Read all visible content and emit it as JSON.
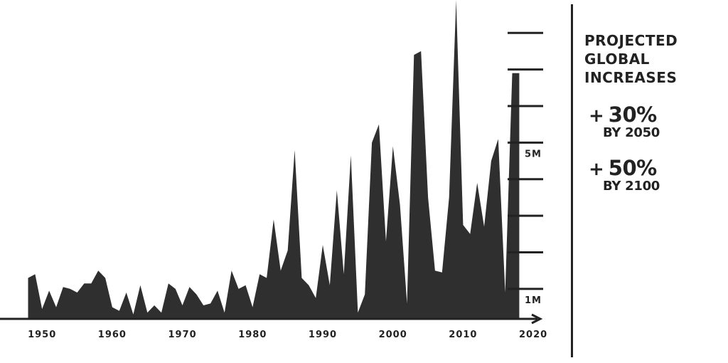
{
  "chart_data": {
    "type": "area",
    "x": [
      1948,
      1949,
      1950,
      1951,
      1952,
      1953,
      1954,
      1955,
      1956,
      1957,
      1958,
      1959,
      1960,
      1961,
      1962,
      1963,
      1964,
      1965,
      1966,
      1967,
      1968,
      1969,
      1970,
      1971,
      1972,
      1973,
      1974,
      1975,
      1976,
      1977,
      1978,
      1979,
      1980,
      1981,
      1982,
      1983,
      1984,
      1985,
      1986,
      1987,
      1988,
      1989,
      1990,
      1991,
      1992,
      1993,
      1994,
      1995,
      1996,
      1997,
      1998,
      1999,
      2000,
      2001,
      2002,
      2003,
      2004,
      2005,
      2006,
      2007,
      2008,
      2009,
      2010,
      2011,
      2012,
      2013,
      2014,
      2015,
      2016,
      2017,
      2018
    ],
    "values": [
      1.3,
      1.4,
      0.45,
      0.95,
      0.5,
      1.05,
      1.0,
      0.9,
      1.15,
      1.15,
      1.5,
      1.3,
      0.5,
      0.4,
      0.9,
      0.3,
      1.1,
      0.35,
      0.55,
      0.35,
      1.15,
      1.0,
      0.55,
      1.05,
      0.85,
      0.55,
      0.6,
      0.95,
      0.35,
      1.5,
      1.0,
      1.1,
      0.5,
      1.4,
      1.3,
      2.9,
      1.5,
      2.05,
      4.8,
      1.3,
      1.1,
      0.75,
      2.2,
      1.1,
      3.7,
      1.4,
      4.65,
      0.35,
      0.85,
      5.0,
      5.5,
      2.3,
      4.9,
      3.3,
      0.6,
      7.4,
      7.5,
      3.5,
      1.5,
      1.45,
      3.5,
      8.9,
      2.75,
      2.5,
      3.9,
      2.7,
      4.5,
      5.1,
      0.9,
      6.9,
      6.9
    ],
    "x_ticks": [
      "1950",
      "1960",
      "1970",
      "1980",
      "1990",
      "2000",
      "2010",
      "2020"
    ],
    "x_tick_values": [
      1950,
      1960,
      1970,
      1980,
      1990,
      2000,
      2010,
      2020
    ],
    "y_ticks": [
      1,
      2,
      3,
      4,
      5,
      6,
      7,
      8
    ],
    "y_tick_labels": [
      "1M",
      "",
      "",
      "",
      "5M",
      "",
      "",
      ""
    ],
    "xlim": [
      1944,
      2021
    ],
    "ylim": [
      0.18,
      8.9
    ],
    "grid": false,
    "fill_color": "#2f2f2f",
    "axis_color": "#222222"
  },
  "panel": {
    "title": "PROJECTED\nGLOBAL\nINCREASES",
    "stats": [
      {
        "value": "30%",
        "year": "BY 2050"
      },
      {
        "value": "50%",
        "year": "BY 2100"
      }
    ],
    "plus": "+"
  }
}
